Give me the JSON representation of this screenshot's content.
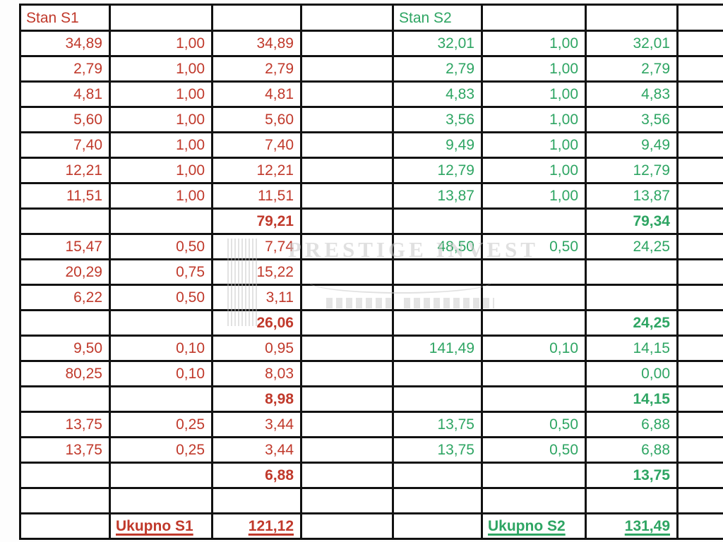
{
  "sections": {
    "left": {
      "title": "Stan S1",
      "total_label": "Ukupno S1",
      "total_value": "121,12",
      "color": "#c0392b"
    },
    "right": {
      "title": "Stan S2",
      "total_label": "Ukupno S2",
      "total_value": "131,49",
      "color": "#2ea563"
    }
  },
  "watermark": {
    "title": "PRESTIGE INVEST"
  },
  "rows": [
    {
      "type": "header",
      "cells": [
        "Stan S1",
        "",
        "",
        "",
        "Stan S2",
        "",
        "",
        ""
      ]
    },
    {
      "type": "data",
      "cells": [
        "34,89",
        "1,00",
        "34,89",
        "",
        "32,01",
        "1,00",
        "32,01",
        ""
      ]
    },
    {
      "type": "data",
      "cells": [
        "2,79",
        "1,00",
        "2,79",
        "",
        "2,79",
        "1,00",
        "2,79",
        ""
      ]
    },
    {
      "type": "data",
      "cells": [
        "4,81",
        "1,00",
        "4,81",
        "",
        "4,83",
        "1,00",
        "4,83",
        ""
      ]
    },
    {
      "type": "data",
      "cells": [
        "5,60",
        "1,00",
        "5,60",
        "",
        "3,56",
        "1,00",
        "3,56",
        ""
      ]
    },
    {
      "type": "data",
      "cells": [
        "7,40",
        "1,00",
        "7,40",
        "",
        "9,49",
        "1,00",
        "9,49",
        ""
      ]
    },
    {
      "type": "data",
      "cells": [
        "12,21",
        "1,00",
        "12,21",
        "",
        "12,79",
        "1,00",
        "12,79",
        ""
      ]
    },
    {
      "type": "data",
      "cells": [
        "11,51",
        "1,00",
        "11,51",
        "",
        "13,87",
        "1,00",
        "13,87",
        ""
      ]
    },
    {
      "type": "subtotal",
      "cells": [
        "",
        "",
        "79,21",
        "",
        "",
        "",
        "79,34",
        ""
      ]
    },
    {
      "type": "data",
      "cells": [
        "15,47",
        "0,50",
        "7,74",
        "",
        "48,50",
        "0,50",
        "24,25",
        ""
      ]
    },
    {
      "type": "data",
      "cells": [
        "20,29",
        "0,75",
        "15,22",
        "",
        "",
        "",
        "",
        ""
      ]
    },
    {
      "type": "data",
      "cells": [
        "6,22",
        "0,50",
        "3,11",
        "",
        "",
        "",
        "",
        ""
      ]
    },
    {
      "type": "subtotal",
      "cells": [
        "",
        "",
        "26,06",
        "",
        "",
        "",
        "24,25",
        ""
      ]
    },
    {
      "type": "data",
      "cells": [
        "9,50",
        "0,10",
        "0,95",
        "",
        "141,49",
        "0,10",
        "14,15",
        ""
      ]
    },
    {
      "type": "data",
      "cells": [
        "80,25",
        "0,10",
        "8,03",
        "",
        "",
        "",
        "0,00",
        ""
      ]
    },
    {
      "type": "subtotal",
      "cells": [
        "",
        "",
        "8,98",
        "",
        "",
        "",
        "14,15",
        ""
      ]
    },
    {
      "type": "data",
      "cells": [
        "13,75",
        "0,25",
        "3,44",
        "",
        "13,75",
        "0,50",
        "6,88",
        ""
      ]
    },
    {
      "type": "data",
      "cells": [
        "13,75",
        "0,25",
        "3,44",
        "",
        "13,75",
        "0,50",
        "6,88",
        ""
      ]
    },
    {
      "type": "subtotal",
      "cells": [
        "",
        "",
        "6,88",
        "",
        "",
        "",
        "13,75",
        ""
      ]
    },
    {
      "type": "blank",
      "cells": [
        "",
        "",
        "",
        "",
        "",
        "",
        "",
        ""
      ]
    },
    {
      "type": "total",
      "cells": [
        "",
        "Ukupno S1",
        "121,12",
        "",
        "",
        "Ukupno S2",
        "131,49",
        ""
      ]
    }
  ]
}
